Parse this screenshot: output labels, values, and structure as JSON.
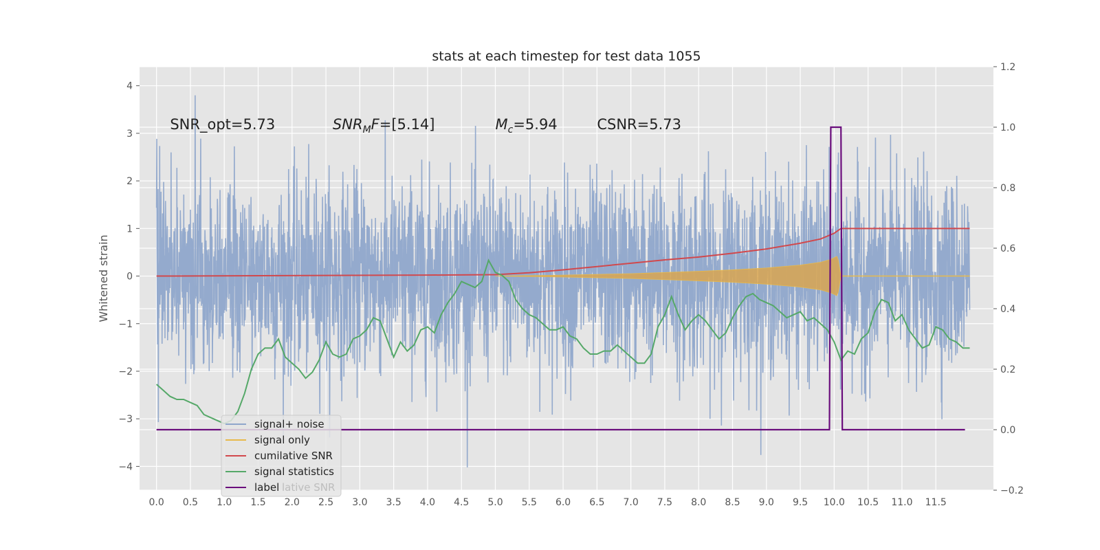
{
  "chart_data": {
    "type": "line",
    "title": "stats at each timestep for test data 1055",
    "ylabel": "Whitened strain",
    "xlabel": "",
    "xlim": [
      -0.25,
      12.35
    ],
    "ylim": [
      -4.5,
      4.4
    ],
    "y2lim": [
      -0.2,
      1.2
    ],
    "grid": true,
    "legend_location": "lower left",
    "x_ticks": [
      0.0,
      0.5,
      1.0,
      1.5,
      2.0,
      2.5,
      3.0,
      3.5,
      4.0,
      4.5,
      5.0,
      5.5,
      6.0,
      6.5,
      7.0,
      7.5,
      8.0,
      8.5,
      9.0,
      9.5,
      10.0,
      10.5,
      11.0,
      11.5
    ],
    "x_tick_labels": [
      "0.0",
      "0.5",
      "1.0",
      "1.5",
      "2.0",
      "2.5",
      "3.0",
      "3.5",
      "4.0",
      "4.5",
      "5.0",
      "5.5",
      "6.0",
      "6.5",
      "7.0",
      "7.5",
      "8.0",
      "8.5",
      "9.0",
      "9.5",
      "10.0",
      "10.5",
      "11.0",
      "11.5"
    ],
    "y_ticks": [
      -4,
      -3,
      -2,
      -1,
      0,
      1,
      2,
      3,
      4
    ],
    "y_tick_labels": [
      "−4",
      "−3",
      "−2",
      "−1",
      "0",
      "1",
      "2",
      "3",
      "4"
    ],
    "y2_ticks": [
      -0.2,
      0.0,
      0.2,
      0.4,
      0.6,
      0.8,
      1.0,
      1.2
    ],
    "y2_tick_labels": [
      "−0.2",
      "0.0",
      "0.2",
      "0.4",
      "0.6",
      "0.8",
      "1.0",
      "1.2"
    ],
    "annotations": [
      {
        "text": "SNR_opt=5.73",
        "x": 0.2,
        "y": 3.2
      },
      {
        "text": "SNR_MF=[5.14]",
        "x": 2.6,
        "y": 3.2
      },
      {
        "text": "M_c=5.94",
        "x": 5.0,
        "y": 3.2
      },
      {
        "text": "CSNR=5.73",
        "x": 6.5,
        "y": 3.2
      }
    ],
    "series": [
      {
        "name": "signal+ noise",
        "color": "#8fa6cb",
        "axis": "left",
        "sample_rate_hz": 256,
        "x_range": [
          0.0,
          12.0
        ],
        "noise_std": 1.0,
        "approx_envelope": [
          -4.1,
          4.05
        ]
      },
      {
        "name": "signal only",
        "color": "#e8b94a",
        "axis": "left",
        "envelope_x": [
          5.0,
          6.0,
          7.0,
          8.0,
          8.5,
          9.0,
          9.5,
          9.8,
          9.95,
          10.05,
          10.1,
          12.0
        ],
        "envelope_amp": [
          0.0,
          0.02,
          0.05,
          0.1,
          0.13,
          0.17,
          0.23,
          0.29,
          0.35,
          0.42,
          0.0,
          0.0
        ]
      },
      {
        "name": "cumilative SNR",
        "color": "#d1484c",
        "axis": "left",
        "x": [
          0.0,
          4.0,
          5.0,
          5.5,
          6.0,
          6.5,
          7.0,
          7.5,
          8.0,
          8.5,
          9.0,
          9.5,
          9.8,
          10.0,
          10.1,
          10.15,
          12.0
        ],
        "y": [
          0.0,
          0.02,
          0.03,
          0.07,
          0.13,
          0.2,
          0.27,
          0.34,
          0.4,
          0.48,
          0.57,
          0.69,
          0.78,
          0.9,
          1.0,
          1.0,
          1.0
        ]
      },
      {
        "name": "signal statistics",
        "color": "#55a868",
        "axis": "right",
        "x": [
          0.0,
          0.1,
          0.2,
          0.3,
          0.4,
          0.5,
          0.6,
          0.7,
          0.8,
          0.9,
          1.0,
          1.1,
          1.2,
          1.3,
          1.4,
          1.5,
          1.6,
          1.7,
          1.8,
          1.9,
          2.0,
          2.1,
          2.2,
          2.3,
          2.4,
          2.5,
          2.6,
          2.7,
          2.8,
          2.9,
          3.0,
          3.1,
          3.2,
          3.3,
          3.4,
          3.5,
          3.6,
          3.7,
          3.8,
          3.9,
          4.0,
          4.1,
          4.2,
          4.3,
          4.4,
          4.5,
          4.6,
          4.7,
          4.8,
          4.9,
          5.0,
          5.1,
          5.2,
          5.3,
          5.4,
          5.5,
          5.6,
          5.7,
          5.8,
          5.9,
          6.0,
          6.1,
          6.2,
          6.3,
          6.4,
          6.5,
          6.6,
          6.7,
          6.8,
          6.9,
          7.0,
          7.1,
          7.2,
          7.3,
          7.4,
          7.5,
          7.6,
          7.7,
          7.8,
          7.9,
          8.0,
          8.1,
          8.2,
          8.3,
          8.4,
          8.5,
          8.6,
          8.7,
          8.8,
          8.9,
          9.0,
          9.1,
          9.2,
          9.3,
          9.4,
          9.5,
          9.6,
          9.7,
          9.8,
          9.9,
          10.0,
          10.1,
          10.2,
          10.3,
          10.4,
          10.5,
          10.6,
          10.7,
          10.8,
          10.9,
          11.0,
          11.1,
          11.2,
          11.3,
          11.4,
          11.5,
          11.6,
          11.7,
          11.8,
          11.9,
          12.0
        ],
        "y": [
          0.15,
          0.13,
          0.11,
          0.1,
          0.1,
          0.09,
          0.08,
          0.05,
          0.04,
          0.03,
          0.02,
          0.03,
          0.06,
          0.12,
          0.2,
          0.25,
          0.27,
          0.27,
          0.3,
          0.24,
          0.22,
          0.2,
          0.17,
          0.19,
          0.23,
          0.29,
          0.25,
          0.24,
          0.25,
          0.3,
          0.31,
          0.33,
          0.37,
          0.36,
          0.3,
          0.24,
          0.29,
          0.26,
          0.28,
          0.33,
          0.34,
          0.32,
          0.38,
          0.42,
          0.45,
          0.49,
          0.48,
          0.47,
          0.49,
          0.56,
          0.52,
          0.51,
          0.49,
          0.43,
          0.4,
          0.38,
          0.37,
          0.35,
          0.33,
          0.33,
          0.34,
          0.31,
          0.3,
          0.27,
          0.25,
          0.25,
          0.26,
          0.26,
          0.28,
          0.26,
          0.24,
          0.22,
          0.22,
          0.25,
          0.34,
          0.38,
          0.44,
          0.38,
          0.33,
          0.36,
          0.38,
          0.36,
          0.33,
          0.3,
          0.32,
          0.37,
          0.41,
          0.44,
          0.45,
          0.43,
          0.42,
          0.41,
          0.39,
          0.37,
          0.38,
          0.39,
          0.36,
          0.37,
          0.35,
          0.33,
          0.29,
          0.23,
          0.26,
          0.25,
          0.3,
          0.32,
          0.39,
          0.43,
          0.42,
          0.36,
          0.38,
          0.33,
          0.3,
          0.27,
          0.28,
          0.34,
          0.33,
          0.3,
          0.29,
          0.27,
          0.27
        ]
      },
      {
        "name": "label",
        "color": "#6a0d7c",
        "axis": "right",
        "x": [
          0.0,
          9.93,
          9.95,
          10.1,
          10.12,
          11.93
        ],
        "y": [
          0.0,
          0.0,
          1.0,
          1.0,
          0.0,
          0.0
        ]
      }
    ],
    "legend_entries": [
      "signal+ noise",
      "signal only",
      "cumilative SNR",
      "signal statistics",
      "label"
    ],
    "legend_partial_text": "lative SNR",
    "colors": {
      "plot_bg": "#e5e5e5",
      "grid": "#ffffff",
      "text": "#555555"
    }
  }
}
